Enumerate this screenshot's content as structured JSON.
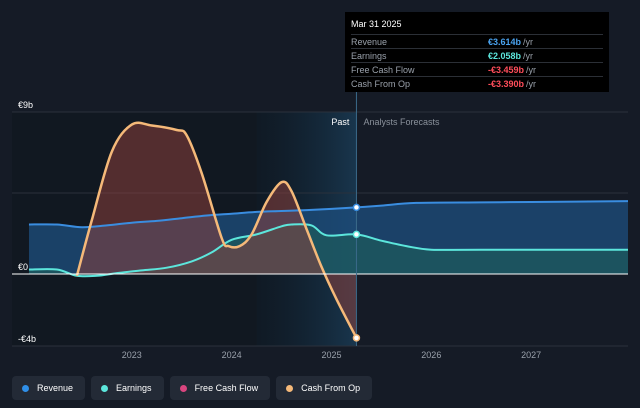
{
  "tooltip": {
    "date": "Mar 31 2025",
    "rows": [
      {
        "label": "Revenue",
        "value": "€3.614b",
        "unit": "/yr",
        "color": "#4aa3f0"
      },
      {
        "label": "Earnings",
        "value": "€2.058b",
        "unit": "/yr",
        "color": "#5ce6dc"
      },
      {
        "label": "Free Cash Flow",
        "value": "-€3.459b",
        "unit": "/yr",
        "color": "#ff4d5a"
      },
      {
        "label": "Cash From Op",
        "value": "-€3.390b",
        "unit": "/yr",
        "color": "#ff4d5a"
      }
    ]
  },
  "legend": [
    {
      "label": "Revenue",
      "color": "#2f8fe8"
    },
    {
      "label": "Earnings",
      "color": "#5ce6dc"
    },
    {
      "label": "Free Cash Flow",
      "color": "#d9457f"
    },
    {
      "label": "Cash From Op",
      "color": "#f5b979"
    }
  ],
  "chart_data": {
    "type": "area",
    "ylim": [
      -4,
      9
    ],
    "y_tick_labels": [
      {
        "value": 9,
        "label": "€9b"
      },
      {
        "value": 0,
        "label": "€0"
      },
      {
        "value": -4,
        "label": "-€4b"
      }
    ],
    "x_tick_labels": [
      {
        "value": 2023,
        "label": "2023"
      },
      {
        "value": 2024,
        "label": "2024"
      },
      {
        "value": 2025,
        "label": "2025"
      },
      {
        "value": 2026,
        "label": "2026"
      },
      {
        "value": 2027,
        "label": "2027"
      }
    ],
    "xlim": [
      2021.8,
      2027.97
    ],
    "past_label": "Past",
    "forecast_label": "Analysts Forecasts",
    "past_end": 2025.25,
    "highlight_start": 2024.25,
    "series": [
      {
        "name": "Revenue",
        "color": "#3a8de0",
        "fill": "#1e4f7f",
        "points": [
          [
            2021.97,
            2.75
          ],
          [
            2022.25,
            2.75
          ],
          [
            2022.5,
            2.6
          ],
          [
            2022.75,
            2.7
          ],
          [
            2023.0,
            2.85
          ],
          [
            2023.25,
            2.95
          ],
          [
            2023.5,
            3.1
          ],
          [
            2023.75,
            3.25
          ],
          [
            2024.0,
            3.35
          ],
          [
            2024.25,
            3.45
          ],
          [
            2024.5,
            3.5
          ],
          [
            2024.75,
            3.55
          ],
          [
            2025.0,
            3.62
          ],
          [
            2025.25,
            3.7
          ],
          [
            2025.5,
            3.8
          ],
          [
            2025.85,
            3.95
          ],
          [
            2026.5,
            3.98
          ],
          [
            2027.0,
            4.0
          ],
          [
            2027.97,
            4.05
          ]
        ]
      },
      {
        "name": "Earnings",
        "color": "#5ce6dc",
        "fill": "#1d5a5c",
        "points": [
          [
            2021.97,
            0.25
          ],
          [
            2022.25,
            0.25
          ],
          [
            2022.45,
            -0.1
          ],
          [
            2022.65,
            -0.1
          ],
          [
            2022.85,
            0.05
          ],
          [
            2023.1,
            0.2
          ],
          [
            2023.35,
            0.35
          ],
          [
            2023.6,
            0.7
          ],
          [
            2023.8,
            1.2
          ],
          [
            2024.0,
            1.9
          ],
          [
            2024.25,
            2.2
          ],
          [
            2024.5,
            2.65
          ],
          [
            2024.6,
            2.75
          ],
          [
            2024.8,
            2.7
          ],
          [
            2024.95,
            2.15
          ],
          [
            2025.25,
            2.2
          ],
          [
            2025.5,
            1.85
          ],
          [
            2025.75,
            1.55
          ],
          [
            2026.0,
            1.35
          ],
          [
            2026.5,
            1.35
          ],
          [
            2027.97,
            1.35
          ]
        ]
      },
      {
        "name": "Cash From Op",
        "color": "#f5b979",
        "fill": "#8a3f3c",
        "points": [
          [
            2022.45,
            -0.1
          ],
          [
            2022.6,
            3.0
          ],
          [
            2022.8,
            6.8
          ],
          [
            2023.0,
            8.3
          ],
          [
            2023.2,
            8.25
          ],
          [
            2023.45,
            8.0
          ],
          [
            2023.55,
            7.7
          ],
          [
            2023.7,
            5.6
          ],
          [
            2023.9,
            2.0
          ],
          [
            2023.97,
            1.55
          ],
          [
            2024.08,
            1.55
          ],
          [
            2024.2,
            2.2
          ],
          [
            2024.35,
            4.0
          ],
          [
            2024.5,
            5.1
          ],
          [
            2024.6,
            4.6
          ],
          [
            2024.75,
            2.5
          ],
          [
            2024.9,
            0.4
          ],
          [
            2025.05,
            -1.4
          ],
          [
            2025.25,
            -3.55
          ]
        ]
      }
    ]
  }
}
